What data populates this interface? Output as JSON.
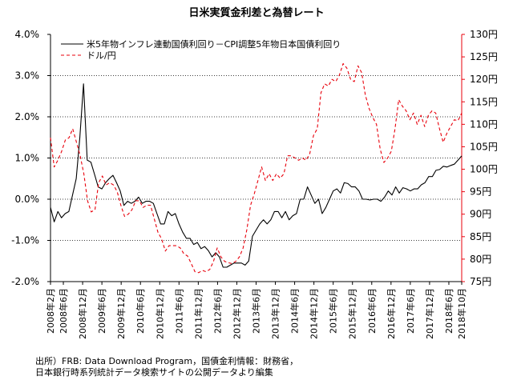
{
  "chart_data": {
    "type": "line",
    "title": "日米実質金利差と為替レート",
    "y_left": {
      "range": [
        -2.0,
        4.0
      ],
      "ticks": [
        "-2.0%",
        "-1.0%",
        "0.0%",
        "1.0%",
        "2.0%",
        "3.0%",
        "4.0%"
      ]
    },
    "y_right": {
      "range": [
        75,
        130
      ],
      "ticks": [
        "75円",
        "80円",
        "85円",
        "90円",
        "95円",
        "100円",
        "105円",
        "110円",
        "115円",
        "120円",
        "125円",
        "130円"
      ],
      "color": "#e8000b"
    },
    "x_start": "2008-02",
    "x_end": "2018-10",
    "x_ticks": [
      "2008年2月",
      "2008年6月",
      "2008年12月",
      "2009年6月",
      "2009年12月",
      "2010年6月",
      "2010年12月",
      "2011年6月",
      "2011年12月",
      "2012年6月",
      "2012年12月",
      "2013年6月",
      "2013年12月",
      "2014年6月",
      "2014年12月",
      "2015年6月",
      "2015年12月",
      "2016年6月",
      "2016年12月",
      "2017年6月",
      "2017年12月",
      "2018年6月",
      "2018年10月"
    ],
    "series": [
      {
        "name": "米5年物インフレ連動国債利回り－CPI調整5年物日本国債利回り",
        "axis": "left",
        "color": "#000000",
        "style": "solid",
        "values": [
          -0.2,
          -0.55,
          -0.3,
          -0.45,
          -0.35,
          -0.3,
          0.1,
          0.5,
          1.5,
          2.8,
          0.95,
          0.9,
          0.6,
          0.3,
          0.25,
          0.4,
          0.5,
          0.58,
          0.4,
          0.2,
          -0.15,
          -0.05,
          -0.1,
          -0.05,
          0.05,
          -0.1,
          -0.05,
          -0.05,
          -0.1,
          -0.35,
          -0.6,
          -0.6,
          -0.3,
          -0.4,
          -0.35,
          -0.6,
          -0.8,
          -0.95,
          -0.95,
          -1.1,
          -1.05,
          -1.2,
          -1.15,
          -1.25,
          -1.4,
          -1.3,
          -1.4,
          -1.65,
          -1.65,
          -1.6,
          -1.55,
          -1.55,
          -1.55,
          -1.6,
          -1.5,
          -0.9,
          -0.75,
          -0.6,
          -0.5,
          -0.6,
          -0.5,
          -0.3,
          -0.3,
          -0.45,
          -0.3,
          -0.5,
          -0.4,
          -0.35,
          0.0,
          0.0,
          0.3,
          0.1,
          -0.1,
          0.0,
          -0.35,
          -0.2,
          0.0,
          0.2,
          0.25,
          0.15,
          0.4,
          0.38,
          0.3,
          0.3,
          0.2,
          0.0,
          0.0,
          -0.02,
          0.0,
          0.0,
          -0.05,
          0.05,
          0.2,
          0.1,
          0.3,
          0.15,
          0.28,
          0.25,
          0.2,
          0.25,
          0.25,
          0.35,
          0.4,
          0.55,
          0.55,
          0.7,
          0.72,
          0.8,
          0.78,
          0.82,
          0.85,
          0.95,
          1.05
        ]
      },
      {
        "name": "ドル/円",
        "axis": "right",
        "color": "#e8000b",
        "style": "dashed",
        "values": [
          107,
          100.5,
          102,
          104,
          106.5,
          107,
          109,
          106,
          103,
          99,
          93,
          90.5,
          91,
          97,
          98.5,
          96.5,
          97,
          96.5,
          95,
          92,
          89.5,
          90,
          91,
          93,
          93,
          91.5,
          92,
          92,
          89,
          86,
          84.5,
          81.8,
          83,
          83,
          83,
          82.5,
          81.2,
          80.7,
          79,
          77.2,
          77,
          77.5,
          77.2,
          77.7,
          79.5,
          82.5,
          80.5,
          79.5,
          79.2,
          79,
          79.5,
          80.5,
          82.5,
          86.5,
          92,
          94.5,
          97.5,
          100.5,
          97.5,
          99,
          97.5,
          99,
          98,
          99,
          103,
          103,
          102.5,
          102,
          102.5,
          102,
          103.5,
          107.5,
          109,
          117,
          119,
          118.5,
          120,
          119.5,
          121,
          123.5,
          122.5,
          120,
          119.5,
          123,
          121.5,
          116.5,
          113.5,
          111.5,
          110,
          104.5,
          101.5,
          102.5,
          104,
          109,
          115.5,
          114,
          113,
          111,
          112.5,
          110,
          112,
          109.5,
          112,
          113,
          112.5,
          109,
          106,
          108,
          109.5,
          111,
          110.8,
          112.5
        ]
      }
    ]
  },
  "source": {
    "line1": "出所）FRB: Data Download Program，国債金利情報：財務省，",
    "line2": "日本銀行時系列統計データ検索サイトの公開データより編集"
  }
}
